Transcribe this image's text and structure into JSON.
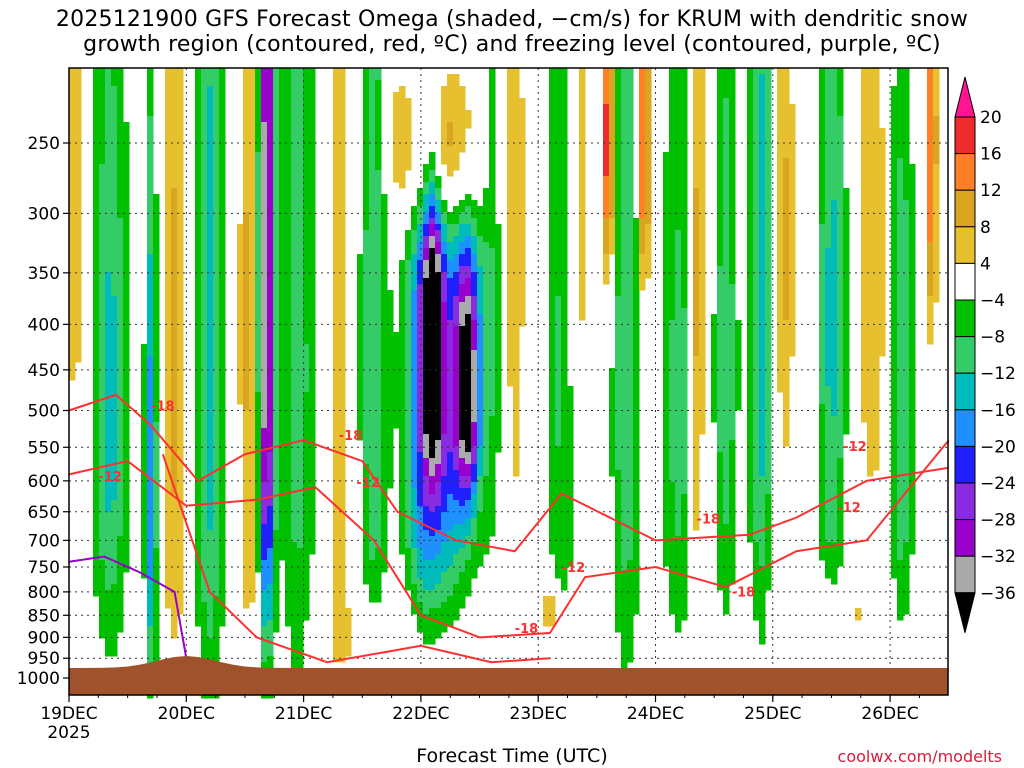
{
  "title": {
    "line1": "2025121900 GFS Forecast Omega (shaded, −cm/s) for KRUM with dendritic snow",
    "line2": "growth region (contoured, red, ºC) and freezing level (contoured, purple, ºC)"
  },
  "credit": "coolwx.com/modelts",
  "chart_data": {
    "type": "heatmap",
    "xlabel": "Forecast Time (UTC)",
    "ylabel": "",
    "x_ticks": [
      "19DEC",
      "20DEC",
      "21DEC",
      "22DEC",
      "23DEC",
      "24DEC",
      "25DEC",
      "26DEC"
    ],
    "x_year_label": "2025",
    "xlim_days": [
      0,
      7.5
    ],
    "y_ticks": [
      250,
      300,
      350,
      400,
      450,
      500,
      550,
      600,
      650,
      700,
      750,
      800,
      850,
      900,
      950,
      1000
    ],
    "ylim_pressure_hpa": [
      200,
      1030
    ],
    "grid": true,
    "colorbar": {
      "labels": [
        "20",
        "16",
        "12",
        "8",
        "4",
        "−4",
        "−8",
        "−12",
        "−16",
        "−20",
        "−24",
        "−28",
        "−32",
        "−36"
      ],
      "colors": [
        "#ff1493",
        "#ee2c2c",
        "#ff7f24",
        "#daa520",
        "#e6c02e",
        "#ffffff",
        "#00c000",
        "#33cc66",
        "#00bbbb",
        "#1e90ff",
        "#2020ff",
        "#8a2be2",
        "#9900cc",
        "#aaaaaa",
        "#000000"
      ]
    },
    "contour_labels": [
      "-18",
      "-12",
      "-18",
      "-12",
      "-12",
      "-18",
      "-18",
      "-12",
      "-18",
      "-12"
    ],
    "terrain_color": "#a0522d",
    "dgz_contour_color": "#ff3030",
    "freezing_contour_color": "#9900cc"
  }
}
